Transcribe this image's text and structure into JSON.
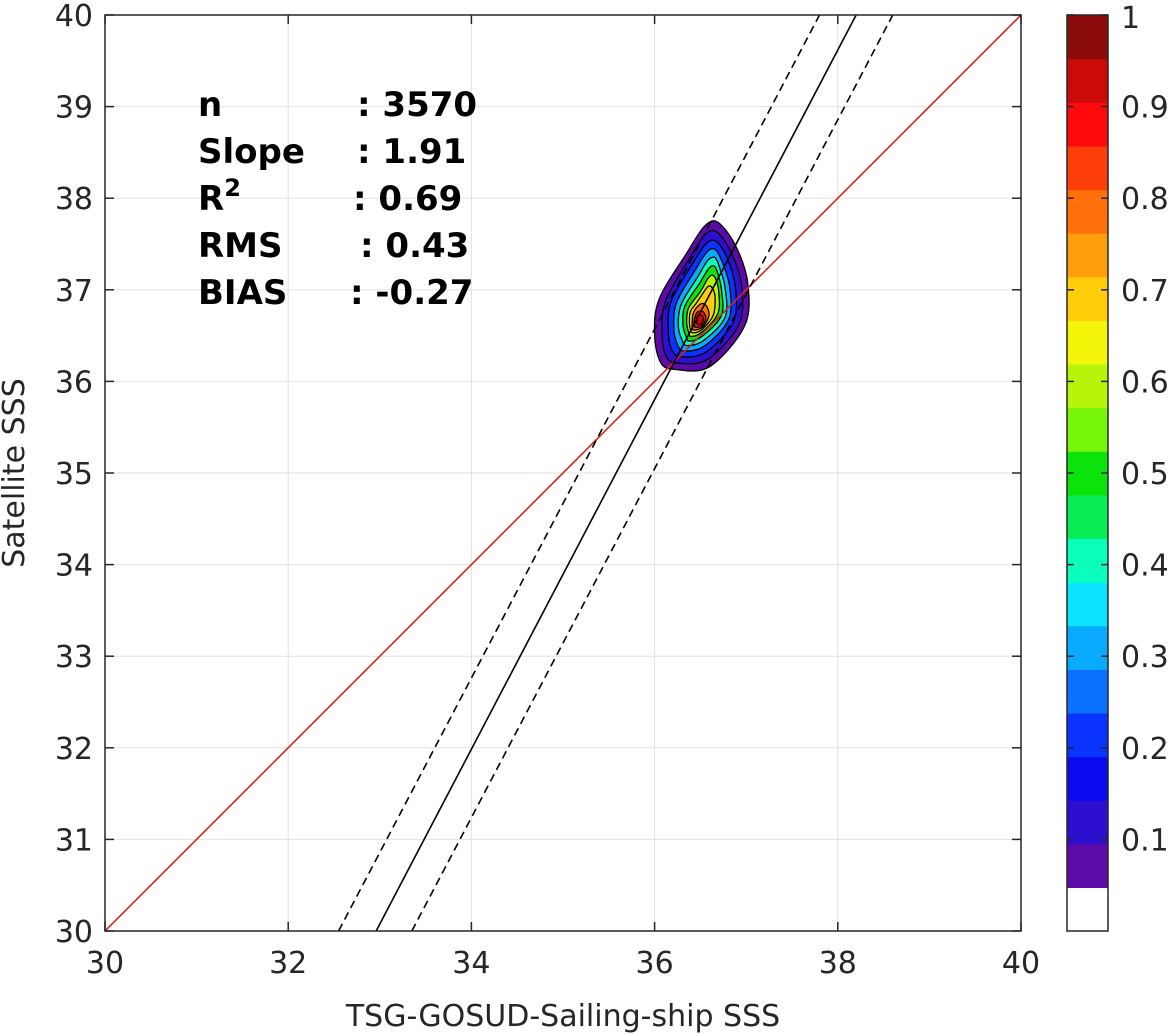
{
  "chart_data": {
    "type": "heatmap",
    "subtype": "density-contour-scatter",
    "title": "",
    "xlabel": "TSG-GOSUD-Sailing-ship SSS",
    "ylabel": "Satellite SSS",
    "xlim": [
      30,
      40
    ],
    "ylim": [
      30,
      40
    ],
    "xticks": [
      "30",
      "32",
      "34",
      "36",
      "38",
      "40"
    ],
    "yticks": [
      "30",
      "31",
      "32",
      "33",
      "34",
      "35",
      "36",
      "37",
      "38",
      "39",
      "40"
    ],
    "grid": true,
    "stats": [
      {
        "label": "n",
        "value": ": 3570"
      },
      {
        "label": "Slope",
        "value": ": 1.91"
      },
      {
        "label": "R",
        "sup": "2",
        "value": ": 0.69"
      },
      {
        "label": "RMS",
        "value": ": 0.43"
      },
      {
        "label": "BIAS",
        "value": ": -0.27"
      }
    ],
    "lines": [
      {
        "kind": "one-to-one",
        "color": "#e0201b",
        "dash": "solid",
        "points": [
          [
            30,
            30
          ],
          [
            40,
            40
          ]
        ]
      },
      {
        "kind": "regression-fit",
        "color": "#000000",
        "dash": "solid",
        "points": [
          [
            32.96,
            30
          ],
          [
            38.2,
            40
          ]
        ]
      },
      {
        "kind": "regression-upper",
        "color": "#000000",
        "dash": "dashed",
        "points": [
          [
            32.55,
            30
          ],
          [
            37.8,
            40
          ]
        ]
      },
      {
        "kind": "regression-lower",
        "color": "#000000",
        "dash": "dashed",
        "points": [
          [
            33.35,
            30
          ],
          [
            38.6,
            40
          ]
        ]
      }
    ],
    "density_peak": {
      "x": 36.48,
      "y": 36.65
    },
    "contours": [
      {
        "level": 0.05,
        "points": [
          [
            36.23,
            36.13
          ],
          [
            36.6,
            36.16
          ],
          [
            36.98,
            36.6
          ],
          [
            37.02,
            37.05
          ],
          [
            36.9,
            37.45
          ],
          [
            36.7,
            37.73
          ],
          [
            36.55,
            37.7
          ],
          [
            36.35,
            37.4
          ],
          [
            36.05,
            36.9
          ],
          [
            36.0,
            36.5
          ],
          [
            36.07,
            36.2
          ]
        ]
      },
      {
        "level": 0.1,
        "points": [
          [
            36.26,
            36.2
          ],
          [
            36.58,
            36.24
          ],
          [
            36.92,
            36.62
          ],
          [
            36.95,
            37.04
          ],
          [
            36.84,
            37.4
          ],
          [
            36.68,
            37.63
          ],
          [
            36.55,
            37.6
          ],
          [
            36.38,
            37.34
          ],
          [
            36.12,
            36.88
          ],
          [
            36.08,
            36.52
          ],
          [
            36.13,
            36.27
          ]
        ]
      },
      {
        "level": 0.2,
        "points": [
          [
            36.3,
            36.27
          ],
          [
            36.56,
            36.32
          ],
          [
            36.86,
            36.65
          ],
          [
            36.88,
            37.04
          ],
          [
            36.79,
            37.35
          ],
          [
            36.67,
            37.53
          ],
          [
            36.56,
            37.5
          ],
          [
            36.41,
            37.28
          ],
          [
            36.18,
            36.87
          ],
          [
            36.15,
            36.55
          ],
          [
            36.19,
            36.34
          ]
        ]
      },
      {
        "level": 0.3,
        "points": [
          [
            36.33,
            36.33
          ],
          [
            36.55,
            36.39
          ],
          [
            36.81,
            36.68
          ],
          [
            36.82,
            37.03
          ],
          [
            36.74,
            37.3
          ],
          [
            36.66,
            37.44
          ],
          [
            36.57,
            37.41
          ],
          [
            36.44,
            37.21
          ],
          [
            36.24,
            36.86
          ],
          [
            36.21,
            36.58
          ],
          [
            36.25,
            36.4
          ]
        ]
      },
      {
        "level": 0.4,
        "points": [
          [
            36.36,
            36.39
          ],
          [
            36.54,
            36.45
          ],
          [
            36.77,
            36.7
          ],
          [
            36.77,
            37.02
          ],
          [
            36.71,
            37.24
          ],
          [
            36.66,
            37.35
          ],
          [
            36.58,
            37.32
          ],
          [
            36.47,
            37.14
          ],
          [
            36.29,
            36.84
          ],
          [
            36.26,
            36.6
          ],
          [
            36.3,
            36.45
          ]
        ]
      },
      {
        "level": 0.5,
        "points": [
          [
            36.38,
            36.44
          ],
          [
            36.53,
            36.5
          ],
          [
            36.73,
            36.72
          ],
          [
            36.73,
            37.0
          ],
          [
            36.69,
            37.18
          ],
          [
            36.65,
            37.26
          ],
          [
            36.59,
            37.23
          ],
          [
            36.49,
            37.07
          ],
          [
            36.33,
            36.82
          ],
          [
            36.31,
            36.62
          ],
          [
            36.34,
            36.5
          ]
        ]
      },
      {
        "level": 0.6,
        "points": [
          [
            36.4,
            36.49
          ],
          [
            36.52,
            36.54
          ],
          [
            36.69,
            36.74
          ],
          [
            36.7,
            36.98
          ],
          [
            36.67,
            37.11
          ],
          [
            36.63,
            37.16
          ],
          [
            36.58,
            37.12
          ],
          [
            36.5,
            36.98
          ],
          [
            36.37,
            36.8
          ],
          [
            36.35,
            36.64
          ],
          [
            36.37,
            36.54
          ]
        ]
      },
      {
        "level": 0.7,
        "points": [
          [
            36.42,
            36.53
          ],
          [
            36.52,
            36.57
          ],
          [
            36.64,
            36.72
          ],
          [
            36.66,
            36.92
          ],
          [
            36.63,
            37.02
          ],
          [
            36.59,
            37.04
          ],
          [
            36.54,
            36.98
          ],
          [
            36.46,
            36.86
          ],
          [
            36.39,
            36.76
          ],
          [
            36.38,
            36.64
          ],
          [
            36.39,
            36.57
          ]
        ]
      },
      {
        "level": 0.8,
        "points": [
          [
            36.43,
            36.56
          ],
          [
            36.52,
            36.59
          ],
          [
            36.59,
            36.7
          ],
          [
            36.58,
            36.8
          ],
          [
            36.53,
            36.85
          ],
          [
            36.47,
            36.82
          ],
          [
            36.42,
            36.74
          ],
          [
            36.41,
            36.64
          ],
          [
            36.41,
            36.59
          ]
        ]
      },
      {
        "level": 0.9,
        "points": [
          [
            36.45,
            36.59
          ],
          [
            36.52,
            36.61
          ],
          [
            36.56,
            36.69
          ],
          [
            36.53,
            36.76
          ],
          [
            36.47,
            36.76
          ],
          [
            36.44,
            36.7
          ],
          [
            36.43,
            36.63
          ]
        ]
      },
      {
        "level": 0.95,
        "points": [
          [
            36.47,
            36.62
          ],
          [
            36.52,
            36.64
          ],
          [
            36.53,
            36.7
          ],
          [
            36.49,
            36.73
          ],
          [
            36.46,
            36.69
          ]
        ]
      }
    ],
    "colorbar": {
      "min": 0,
      "max": 1,
      "tick_labels": [
        "0.1",
        "0.2",
        "0.3",
        "0.4",
        "0.5",
        "0.6",
        "0.7",
        "0.8",
        "0.9",
        "1"
      ],
      "tick_values": [
        0.1,
        0.2,
        0.3,
        0.4,
        0.5,
        0.6,
        0.7,
        0.8,
        0.9,
        1.0
      ],
      "colors": [
        "#ffffff",
        "#5c0aa8",
        "#2c0fcf",
        "#0a0aee",
        "#0a33ff",
        "#0a72ff",
        "#0aaaff",
        "#0ae4ff",
        "#0affbb",
        "#0aee55",
        "#0ae40a",
        "#77f50a",
        "#b6f50a",
        "#f5f50a",
        "#ffcd0a",
        "#ff9e0a",
        "#ff700a",
        "#ff3f0a",
        "#ff0a0a",
        "#cc0a0a",
        "#8b0a0a"
      ]
    },
    "colors": {
      "one_to_one": "#e0201b",
      "fit": "#000000",
      "grid": "#e2e2e2",
      "axes": "#262626"
    }
  }
}
